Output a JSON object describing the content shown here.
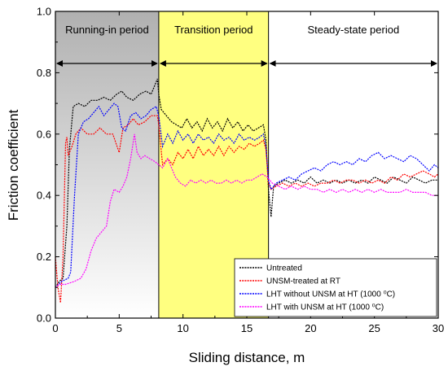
{
  "chart_data": {
    "type": "line",
    "xlabel": "Sliding distance, m",
    "ylabel": "Friction coefficient",
    "xlim": [
      0,
      30
    ],
    "ylim": [
      0.0,
      1.0
    ],
    "x_ticks": [
      "0",
      "5",
      "10",
      "15",
      "20",
      "25",
      "30"
    ],
    "y_ticks": [
      "0.0",
      "0.2",
      "0.4",
      "0.6",
      "0.8",
      "1.0"
    ],
    "grid": false,
    "legend_position": "bottom-right",
    "regions": [
      {
        "label": "Running-in period",
        "x_start": 0,
        "x_end": 8.1,
        "color": "#c0c0c0"
      },
      {
        "label": "Transition period",
        "x_start": 8.1,
        "x_end": 16.7,
        "color": "#ffff80"
      },
      {
        "label": "Steady-state period",
        "x_start": 16.7,
        "x_end": 30,
        "color": "#ffffff"
      }
    ],
    "series": [
      {
        "name": "Untreated",
        "color": "#000000",
        "points": [
          [
            0,
            0.1
          ],
          [
            0.3,
            0.12
          ],
          [
            0.6,
            0.13
          ],
          [
            0.9,
            0.3
          ],
          [
            1.1,
            0.55
          ],
          [
            1.4,
            0.69
          ],
          [
            1.8,
            0.7
          ],
          [
            2.3,
            0.69
          ],
          [
            2.8,
            0.71
          ],
          [
            3.3,
            0.71
          ],
          [
            3.8,
            0.72
          ],
          [
            4.3,
            0.71
          ],
          [
            4.8,
            0.73
          ],
          [
            5.2,
            0.74
          ],
          [
            5.6,
            0.72
          ],
          [
            6.1,
            0.71
          ],
          [
            6.6,
            0.73
          ],
          [
            7.1,
            0.74
          ],
          [
            7.5,
            0.73
          ],
          [
            7.8,
            0.76
          ],
          [
            8.0,
            0.78
          ],
          [
            8.1,
            0.73
          ],
          [
            8.3,
            0.68
          ],
          [
            8.7,
            0.66
          ],
          [
            9.1,
            0.64
          ],
          [
            9.5,
            0.63
          ],
          [
            9.9,
            0.62
          ],
          [
            10.3,
            0.65
          ],
          [
            10.7,
            0.62
          ],
          [
            11.1,
            0.64
          ],
          [
            11.5,
            0.61
          ],
          [
            11.9,
            0.65
          ],
          [
            12.3,
            0.62
          ],
          [
            12.7,
            0.64
          ],
          [
            13.1,
            0.61
          ],
          [
            13.5,
            0.65
          ],
          [
            13.9,
            0.62
          ],
          [
            14.3,
            0.64
          ],
          [
            14.7,
            0.61
          ],
          [
            15.1,
            0.63
          ],
          [
            15.5,
            0.61
          ],
          [
            15.9,
            0.62
          ],
          [
            16.3,
            0.63
          ],
          [
            16.5,
            0.58
          ],
          [
            16.7,
            0.42
          ],
          [
            16.9,
            0.33
          ],
          [
            17.1,
            0.43
          ],
          [
            17.5,
            0.44
          ],
          [
            18,
            0.45
          ],
          [
            18.5,
            0.44
          ],
          [
            19,
            0.45
          ],
          [
            19.5,
            0.44
          ],
          [
            20,
            0.46
          ],
          [
            20.5,
            0.44
          ],
          [
            21,
            0.45
          ],
          [
            21.5,
            0.44
          ],
          [
            22,
            0.45
          ],
          [
            22.5,
            0.44
          ],
          [
            23,
            0.45
          ],
          [
            23.5,
            0.44
          ],
          [
            24,
            0.45
          ],
          [
            24.5,
            0.44
          ],
          [
            25,
            0.46
          ],
          [
            25.5,
            0.45
          ],
          [
            26,
            0.44
          ],
          [
            26.5,
            0.46
          ],
          [
            27,
            0.45
          ],
          [
            27.5,
            0.44
          ],
          [
            28,
            0.46
          ],
          [
            28.5,
            0.45
          ],
          [
            29,
            0.44
          ],
          [
            29.5,
            0.45
          ],
          [
            30,
            0.45
          ]
        ]
      },
      {
        "name": "UNSM-treated at RT",
        "color": "#ff0000",
        "points": [
          [
            0,
            0.2
          ],
          [
            0.2,
            0.1
          ],
          [
            0.4,
            0.05
          ],
          [
            0.6,
            0.2
          ],
          [
            0.8,
            0.57
          ],
          [
            0.9,
            0.59
          ],
          [
            1.0,
            0.53
          ],
          [
            1.3,
            0.56
          ],
          [
            1.6,
            0.6
          ],
          [
            2.0,
            0.62
          ],
          [
            2.5,
            0.6
          ],
          [
            3.0,
            0.6
          ],
          [
            3.5,
            0.62
          ],
          [
            4.0,
            0.6
          ],
          [
            4.5,
            0.6
          ],
          [
            5.0,
            0.54
          ],
          [
            5.3,
            0.62
          ],
          [
            5.7,
            0.63
          ],
          [
            6.1,
            0.65
          ],
          [
            6.5,
            0.63
          ],
          [
            7.0,
            0.64
          ],
          [
            7.5,
            0.66
          ],
          [
            8.0,
            0.66
          ],
          [
            8.1,
            0.63
          ],
          [
            8.4,
            0.5
          ],
          [
            8.8,
            0.52
          ],
          [
            9.2,
            0.5
          ],
          [
            9.6,
            0.54
          ],
          [
            10,
            0.52
          ],
          [
            10.4,
            0.55
          ],
          [
            10.8,
            0.52
          ],
          [
            11.2,
            0.56
          ],
          [
            11.6,
            0.53
          ],
          [
            12,
            0.55
          ],
          [
            12.4,
            0.53
          ],
          [
            12.8,
            0.56
          ],
          [
            13.2,
            0.53
          ],
          [
            13.6,
            0.56
          ],
          [
            14,
            0.54
          ],
          [
            14.4,
            0.56
          ],
          [
            14.8,
            0.55
          ],
          [
            15.2,
            0.57
          ],
          [
            15.6,
            0.56
          ],
          [
            16,
            0.57
          ],
          [
            16.3,
            0.58
          ],
          [
            16.5,
            0.55
          ],
          [
            16.7,
            0.44
          ],
          [
            16.9,
            0.42
          ],
          [
            17.3,
            0.43
          ],
          [
            17.8,
            0.44
          ],
          [
            18.3,
            0.43
          ],
          [
            18.8,
            0.44
          ],
          [
            19.3,
            0.43
          ],
          [
            19.8,
            0.44
          ],
          [
            20.3,
            0.43
          ],
          [
            20.8,
            0.44
          ],
          [
            21.3,
            0.44
          ],
          [
            21.8,
            0.45
          ],
          [
            22.3,
            0.44
          ],
          [
            22.8,
            0.45
          ],
          [
            23.3,
            0.45
          ],
          [
            23.8,
            0.44
          ],
          [
            24.3,
            0.45
          ],
          [
            24.8,
            0.44
          ],
          [
            25.3,
            0.45
          ],
          [
            25.8,
            0.44
          ],
          [
            26.3,
            0.46
          ],
          [
            26.8,
            0.45
          ],
          [
            27.3,
            0.47
          ],
          [
            27.8,
            0.46
          ],
          [
            28.3,
            0.47
          ],
          [
            28.8,
            0.48
          ],
          [
            29.3,
            0.47
          ],
          [
            29.7,
            0.46
          ],
          [
            30,
            0.47
          ]
        ]
      },
      {
        "name": "LHT without UNSM at HT (1000 ⁰C)",
        "color": "#0000ff",
        "points": [
          [
            0,
            0.1
          ],
          [
            0.5,
            0.12
          ],
          [
            1.0,
            0.13
          ],
          [
            1.2,
            0.15
          ],
          [
            1.5,
            0.4
          ],
          [
            1.8,
            0.6
          ],
          [
            2.2,
            0.64
          ],
          [
            2.6,
            0.65
          ],
          [
            3.0,
            0.67
          ],
          [
            3.4,
            0.69
          ],
          [
            3.8,
            0.66
          ],
          [
            4.2,
            0.68
          ],
          [
            4.6,
            0.7
          ],
          [
            4.9,
            0.69
          ],
          [
            5.2,
            0.62
          ],
          [
            5.5,
            0.61
          ],
          [
            5.9,
            0.66
          ],
          [
            6.3,
            0.67
          ],
          [
            6.7,
            0.65
          ],
          [
            7.1,
            0.66
          ],
          [
            7.5,
            0.68
          ],
          [
            7.9,
            0.69
          ],
          [
            8.1,
            0.66
          ],
          [
            8.4,
            0.56
          ],
          [
            8.8,
            0.6
          ],
          [
            9.2,
            0.57
          ],
          [
            9.6,
            0.61
          ],
          [
            10,
            0.58
          ],
          [
            10.4,
            0.6
          ],
          [
            10.8,
            0.57
          ],
          [
            11.2,
            0.6
          ],
          [
            11.6,
            0.58
          ],
          [
            12,
            0.59
          ],
          [
            12.4,
            0.57
          ],
          [
            12.8,
            0.6
          ],
          [
            13.2,
            0.58
          ],
          [
            13.6,
            0.59
          ],
          [
            14,
            0.57
          ],
          [
            14.4,
            0.6
          ],
          [
            14.8,
            0.58
          ],
          [
            15.2,
            0.59
          ],
          [
            15.6,
            0.58
          ],
          [
            16,
            0.59
          ],
          [
            16.3,
            0.6
          ],
          [
            16.5,
            0.56
          ],
          [
            16.7,
            0.45
          ],
          [
            16.9,
            0.42
          ],
          [
            17.3,
            0.44
          ],
          [
            17.8,
            0.45
          ],
          [
            18.3,
            0.46
          ],
          [
            18.8,
            0.45
          ],
          [
            19.3,
            0.47
          ],
          [
            19.8,
            0.48
          ],
          [
            20.3,
            0.49
          ],
          [
            20.8,
            0.48
          ],
          [
            21.3,
            0.5
          ],
          [
            21.8,
            0.51
          ],
          [
            22.3,
            0.5
          ],
          [
            22.8,
            0.51
          ],
          [
            23.3,
            0.5
          ],
          [
            23.8,
            0.52
          ],
          [
            24.3,
            0.51
          ],
          [
            24.8,
            0.53
          ],
          [
            25.3,
            0.54
          ],
          [
            25.8,
            0.52
          ],
          [
            26.3,
            0.53
          ],
          [
            26.8,
            0.52
          ],
          [
            27.3,
            0.51
          ],
          [
            27.8,
            0.53
          ],
          [
            28.3,
            0.52
          ],
          [
            28.8,
            0.5
          ],
          [
            29.3,
            0.48
          ],
          [
            29.7,
            0.5
          ],
          [
            30,
            0.49
          ]
        ]
      },
      {
        "name": "LHT with UNSM at HT (1000 ⁰C)",
        "color": "#ff00ff",
        "points": [
          [
            0,
            0.1
          ],
          [
            0.3,
            0.11
          ],
          [
            0.8,
            0.11
          ],
          [
            1.5,
            0.12
          ],
          [
            2.0,
            0.13
          ],
          [
            2.4,
            0.16
          ],
          [
            2.8,
            0.22
          ],
          [
            3.2,
            0.26
          ],
          [
            3.6,
            0.28
          ],
          [
            4.0,
            0.3
          ],
          [
            4.3,
            0.38
          ],
          [
            4.6,
            0.42
          ],
          [
            5.0,
            0.41
          ],
          [
            5.3,
            0.43
          ],
          [
            5.6,
            0.46
          ],
          [
            5.9,
            0.52
          ],
          [
            6.2,
            0.6
          ],
          [
            6.4,
            0.54
          ],
          [
            6.7,
            0.52
          ],
          [
            7.0,
            0.53
          ],
          [
            7.4,
            0.52
          ],
          [
            7.8,
            0.51
          ],
          [
            8.1,
            0.5
          ],
          [
            8.4,
            0.49
          ],
          [
            8.8,
            0.52
          ],
          [
            9.1,
            0.49
          ],
          [
            9.4,
            0.46
          ],
          [
            9.8,
            0.44
          ],
          [
            10.2,
            0.43
          ],
          [
            10.6,
            0.45
          ],
          [
            11,
            0.44
          ],
          [
            11.4,
            0.45
          ],
          [
            11.8,
            0.44
          ],
          [
            12.2,
            0.45
          ],
          [
            12.6,
            0.44
          ],
          [
            13,
            0.44
          ],
          [
            13.4,
            0.45
          ],
          [
            13.8,
            0.44
          ],
          [
            14.2,
            0.45
          ],
          [
            14.6,
            0.44
          ],
          [
            15,
            0.45
          ],
          [
            15.4,
            0.45
          ],
          [
            15.8,
            0.46
          ],
          [
            16.2,
            0.47
          ],
          [
            16.6,
            0.46
          ],
          [
            17,
            0.44
          ],
          [
            17.5,
            0.43
          ],
          [
            18,
            0.42
          ],
          [
            18.5,
            0.43
          ],
          [
            19,
            0.42
          ],
          [
            19.5,
            0.43
          ],
          [
            20,
            0.42
          ],
          [
            20.5,
            0.42
          ],
          [
            21,
            0.41
          ],
          [
            21.5,
            0.42
          ],
          [
            22,
            0.41
          ],
          [
            22.5,
            0.42
          ],
          [
            23,
            0.41
          ],
          [
            23.5,
            0.42
          ],
          [
            24,
            0.41
          ],
          [
            24.5,
            0.42
          ],
          [
            25,
            0.41
          ],
          [
            25.5,
            0.42
          ],
          [
            26,
            0.41
          ],
          [
            26.5,
            0.41
          ],
          [
            27,
            0.41
          ],
          [
            27.5,
            0.42
          ],
          [
            28,
            0.41
          ],
          [
            28.5,
            0.41
          ],
          [
            29,
            0.41
          ],
          [
            29.5,
            0.4
          ],
          [
            30,
            0.4
          ]
        ]
      }
    ]
  }
}
